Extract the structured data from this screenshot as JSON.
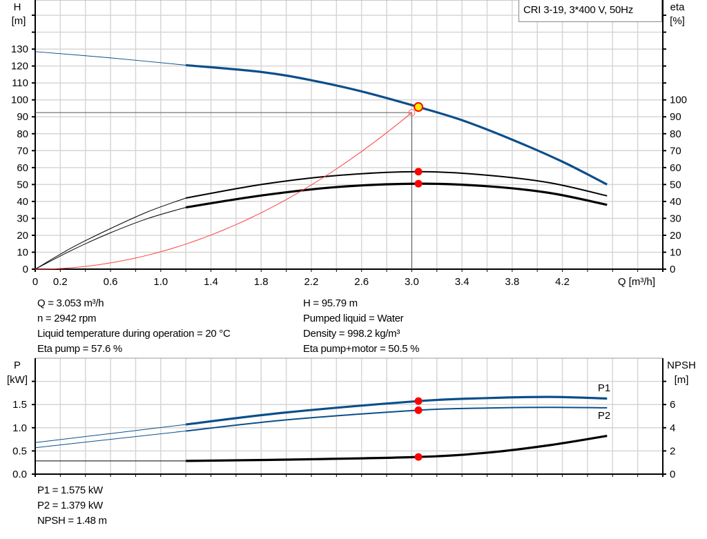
{
  "chart_data": [
    {
      "type": "line",
      "title": "",
      "pump_label": "CRI 3-19, 3*400 V, 50Hz",
      "xlabel": "Q [m³/h]",
      "xlim": [
        0,
        5.0
      ],
      "x_ticks": [
        "0",
        "0.2",
        "0.6",
        "1.0",
        "1.4",
        "1.8",
        "2.2",
        "2.6",
        "3.0",
        "3.4",
        "3.8",
        "4.2"
      ],
      "x_tick_values": [
        0,
        0.2,
        0.6,
        1.0,
        1.4,
        1.8,
        2.2,
        2.6,
        3.0,
        3.4,
        3.8,
        4.2
      ],
      "ylabel_left": [
        "H",
        "[m]"
      ],
      "ylim_left": [
        0,
        159
      ],
      "y_ticks_left": [
        0,
        10,
        20,
        30,
        40,
        50,
        60,
        70,
        80,
        90,
        100,
        110,
        120,
        130
      ],
      "ylabel_right": [
        "eta",
        "[%]"
      ],
      "ylim_right": [
        0,
        159
      ],
      "y_ticks_right": [
        0,
        10,
        20,
        30,
        40,
        50,
        60,
        70,
        80,
        90,
        100
      ],
      "grid": true,
      "series": [
        {
          "key": "H",
          "axis": "left",
          "color": "#0b4e8a",
          "thin": [
            [
              0,
              128.5
            ],
            [
              0.6,
              124.8
            ],
            [
              1.2,
              120.5
            ]
          ],
          "thick": [
            [
              1.2,
              120.5
            ],
            [
              1.8,
              116.5
            ],
            [
              2.2,
              111.6
            ],
            [
              2.6,
              105
            ],
            [
              3.053,
              95.79
            ],
            [
              3.4,
              88
            ],
            [
              3.8,
              76.5
            ],
            [
              4.2,
              63.5
            ],
            [
              4.556,
              50
            ]
          ]
        },
        {
          "key": "eta_pump",
          "axis": "right",
          "color": "#000000",
          "thin": [
            [
              0,
              0
            ],
            [
              0.3,
              13
            ],
            [
              0.6,
              24
            ],
            [
              0.9,
              34
            ],
            [
              1.2,
              42
            ]
          ],
          "thick": [
            [
              1.2,
              42
            ],
            [
              1.8,
              50
            ],
            [
              2.4,
              55.3
            ],
            [
              3.053,
              57.6
            ],
            [
              3.6,
              55.5
            ],
            [
              4.1,
              51
            ],
            [
              4.556,
              43.3
            ]
          ]
        },
        {
          "key": "eta_total",
          "axis": "right",
          "color": "#000000",
          "thin": [
            [
              0,
              0
            ],
            [
              0.3,
              11.5
            ],
            [
              0.6,
              21.5
            ],
            [
              0.9,
              30
            ],
            [
              1.2,
              36.5
            ]
          ],
          "thick": [
            [
              1.2,
              36.5
            ],
            [
              1.8,
              43.5
            ],
            [
              2.4,
              48.5
            ],
            [
              3.053,
              50.5
            ],
            [
              3.6,
              49
            ],
            [
              4.1,
              45
            ],
            [
              4.556,
              38
            ]
          ]
        },
        {
          "key": "system_curve",
          "axis": "left",
          "color": "#ff4040",
          "k": 10.28,
          "to_x": 3.0
        }
      ],
      "reference_point": {
        "Q": 3.0,
        "H": 92.5
      },
      "duty_point": {
        "Q": 3.053,
        "H": 95.79,
        "eta_pump": 57.6,
        "eta_total": 50.5
      },
      "duty_point_color": "#ffee00",
      "marker_color": "#ff0000"
    },
    {
      "type": "line",
      "title": "",
      "xlim": [
        0,
        5.0
      ],
      "ylabel_left": [
        "P",
        "[kW]"
      ],
      "ylim_left": [
        0,
        2.5
      ],
      "y_ticks_left": [
        "0.0",
        "0.5",
        "1.0",
        "1.5"
      ],
      "y_tick_values_left": [
        0,
        0.5,
        1.0,
        1.5
      ],
      "ylabel_right": [
        "NPSH",
        "[m]"
      ],
      "ylim_right": [
        0,
        10
      ],
      "y_ticks_right": [
        0,
        2,
        4,
        6
      ],
      "grid": true,
      "series": [
        {
          "key": "P1",
          "name": "P1",
          "axis": "left",
          "color": "#0b4e8a",
          "thin": [
            [
              0,
              0.68
            ],
            [
              1.2,
              1.07
            ]
          ],
          "thick": [
            [
              1.2,
              1.07
            ],
            [
              2.0,
              1.33
            ],
            [
              3.053,
              1.575
            ],
            [
              3.6,
              1.64
            ],
            [
              4.1,
              1.665
            ],
            [
              4.556,
              1.63
            ]
          ]
        },
        {
          "key": "P2",
          "name": "P2",
          "axis": "left",
          "color": "#0b4e8a",
          "thin": [
            [
              0,
              0.57
            ],
            [
              1.2,
              0.93
            ]
          ],
          "thick": [
            [
              1.2,
              0.93
            ],
            [
              2.0,
              1.17
            ],
            [
              3.053,
              1.379
            ],
            [
              3.6,
              1.425
            ],
            [
              4.1,
              1.44
            ],
            [
              4.556,
              1.43
            ]
          ]
        },
        {
          "key": "NPSH",
          "axis": "right",
          "color": "#000000",
          "thin": [
            [
              0,
              1.14
            ],
            [
              1.2,
              1.14
            ]
          ],
          "thick": [
            [
              1.2,
              1.14
            ],
            [
              2.0,
              1.25
            ],
            [
              3.053,
              1.48
            ],
            [
              3.6,
              1.85
            ],
            [
              4.1,
              2.5
            ],
            [
              4.556,
              3.3
            ]
          ]
        }
      ],
      "duty_point": {
        "Q": 3.053,
        "P1": 1.575,
        "P2": 1.379,
        "NPSH": 1.48
      }
    }
  ],
  "results_top": {
    "left": [
      "Q = 3.053 m³/h",
      "n = 2942 rpm",
      "Liquid temperature during operation = 20 °C",
      "Eta pump = 57.6 %"
    ],
    "right": [
      "H = 95.79 m",
      "Pumped liquid = Water",
      "Density = 998.2 kg/m³",
      "Eta pump+motor = 50.5 %"
    ]
  },
  "results_bottom": [
    "P1 = 1.575 kW",
    "P2 = 1.379 kW",
    "NPSH = 1.48 m"
  ]
}
